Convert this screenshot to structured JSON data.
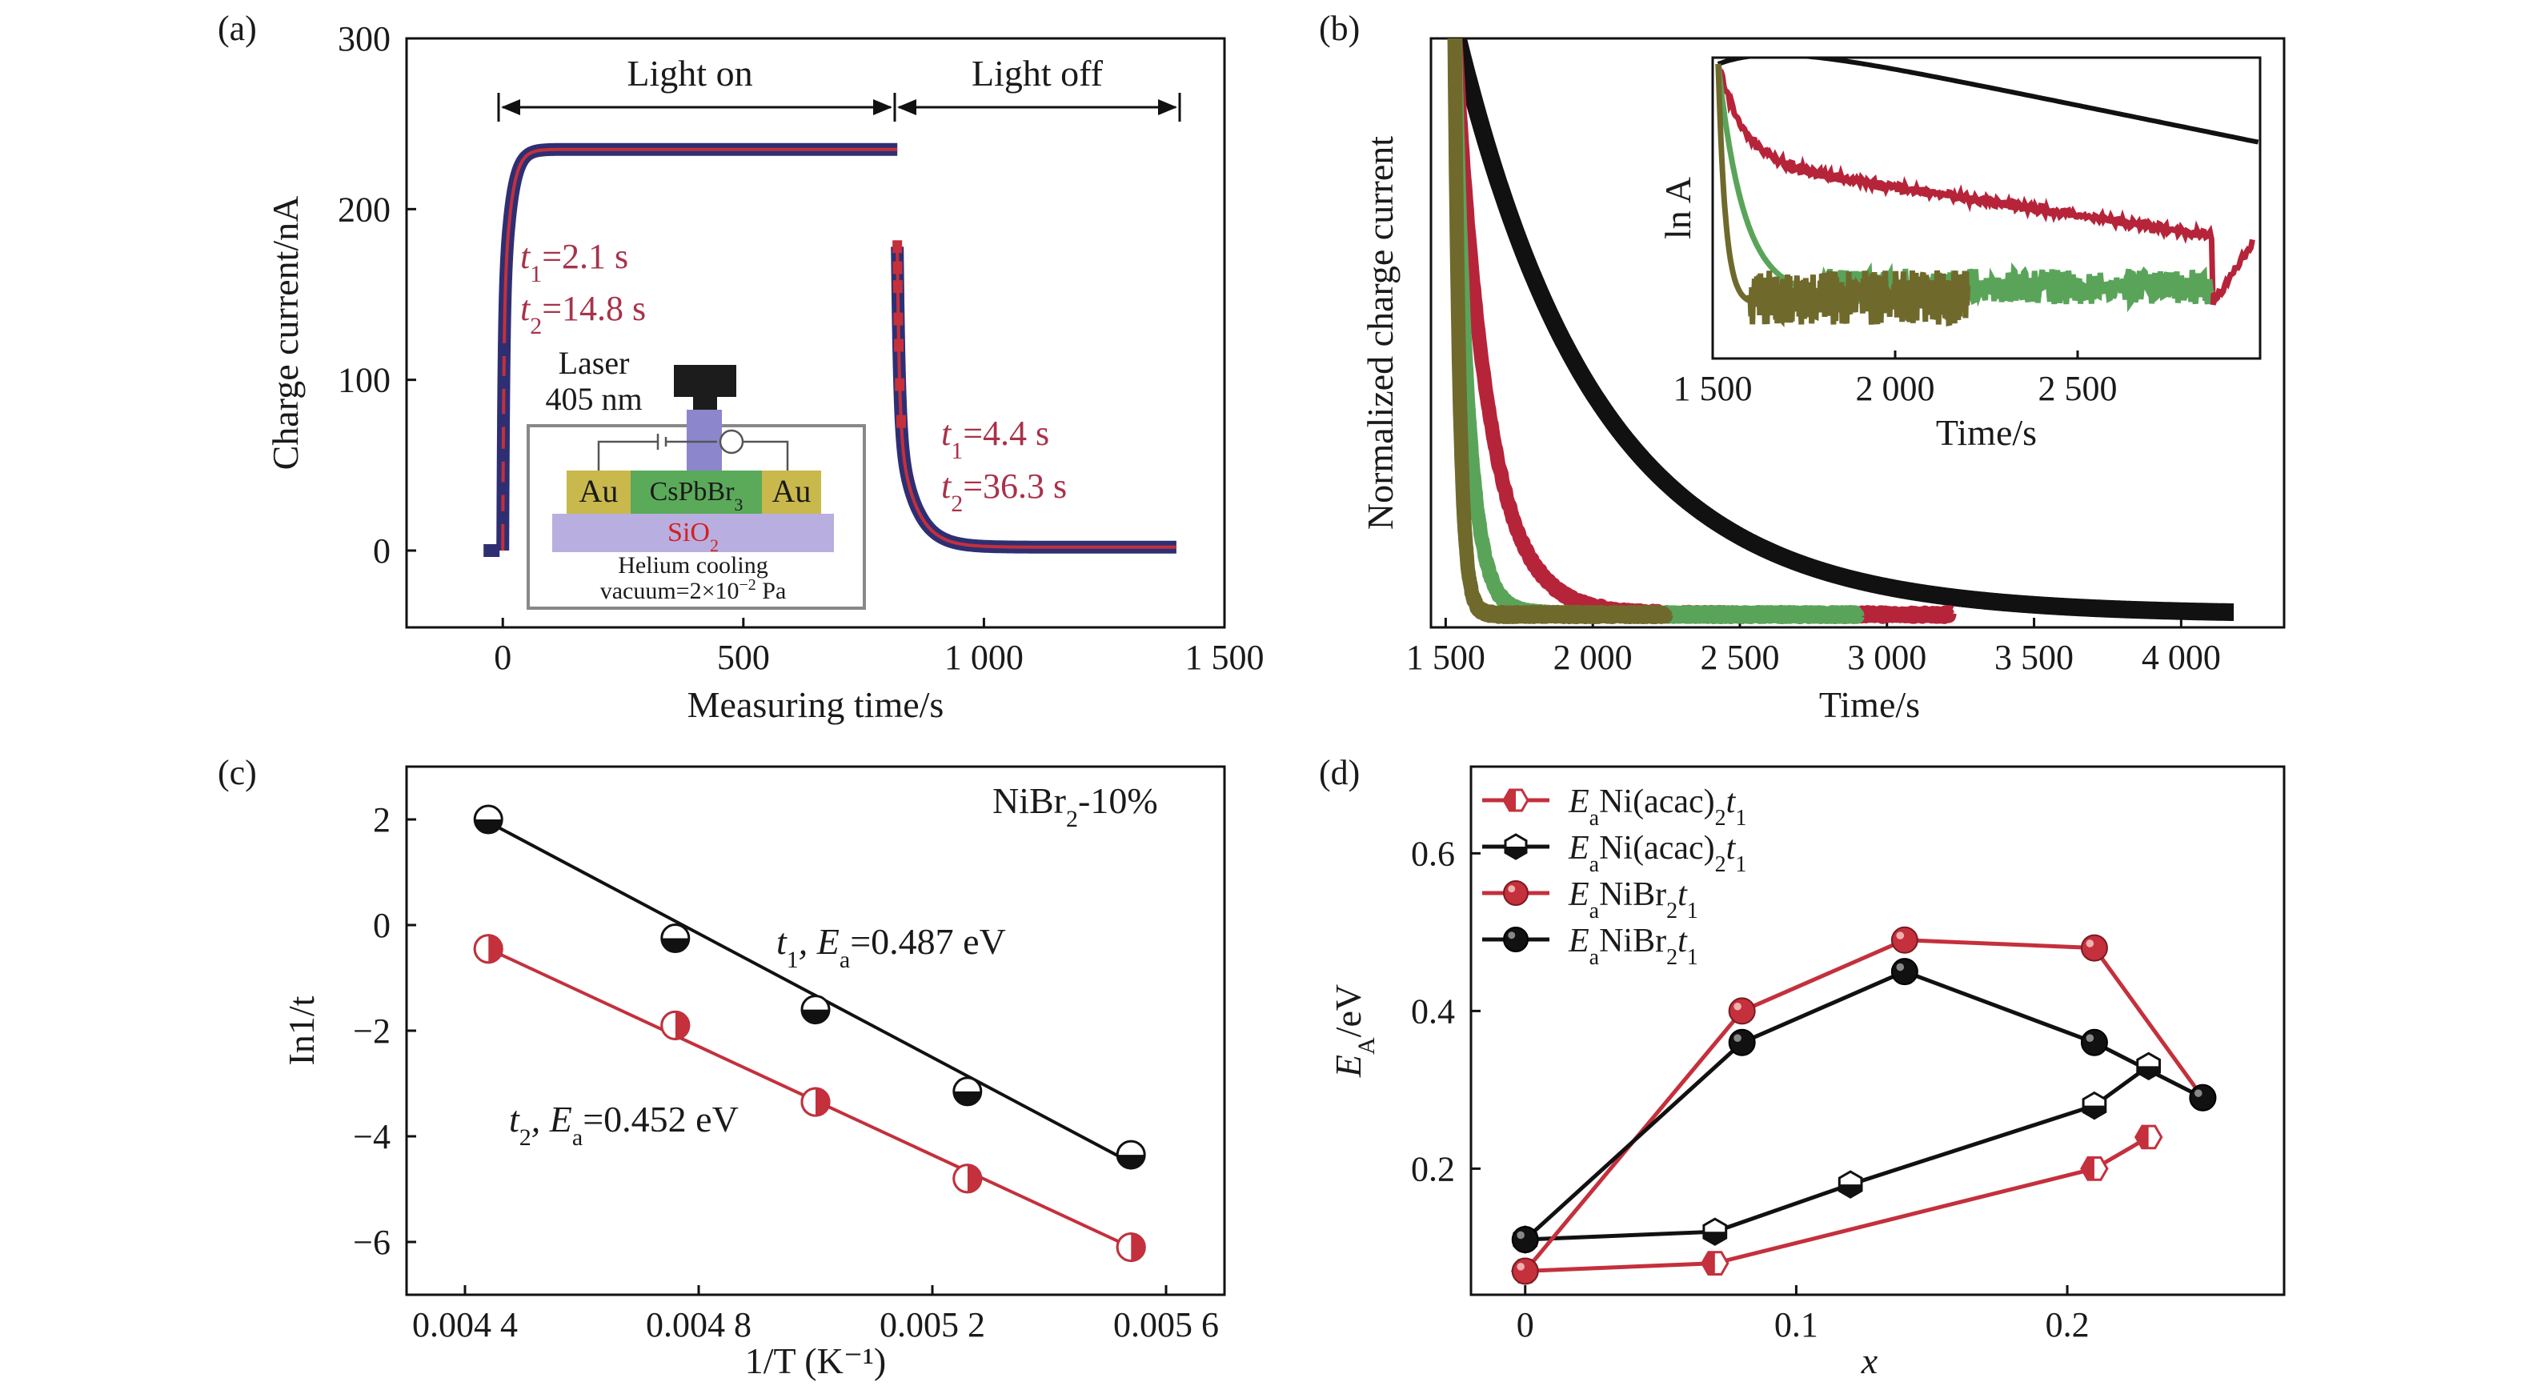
{
  "colors": {
    "red": "#c4303c",
    "black": "#111111",
    "navy": "#2e2f73",
    "green": "#5aa45a",
    "olive": "#6f6a2c",
    "crimson": "#b6243a",
    "annotation": "#a8324a",
    "au": "#c9b84c",
    "au_text": "#d42020",
    "perov": "#5aaa5a",
    "sio2": "#b9aee0"
  },
  "chart_data": [
    {
      "panel": "(a)",
      "type": "line",
      "xlabel": "Measuring time/s",
      "ylabel": "Charge current/nA",
      "xlim": [
        -200,
        1500
      ],
      "ylim": [
        -45,
        300
      ],
      "xticks": [
        {
          "v": 0,
          "label": "0"
        },
        {
          "v": 500,
          "label": "500"
        },
        {
          "v": 1000,
          "label": "1 000"
        },
        {
          "v": 1500,
          "label": "1 500"
        }
      ],
      "yticks": [
        {
          "v": 0,
          "label": "0"
        },
        {
          "v": 100,
          "label": "100"
        },
        {
          "v": 200,
          "label": "200"
        },
        {
          "v": 300,
          "label": "300"
        }
      ],
      "light_on_label": "Light on",
      "light_off_label": "Light off",
      "light_on_range": [
        0,
        820
      ],
      "light_off_range": [
        820,
        1400
      ],
      "rise": {
        "t0": 0,
        "plateau": 235,
        "start": 0,
        "end": 820,
        "tau1": 2.1,
        "tau2": 14.8
      },
      "decay": {
        "t0": 820,
        "peak": 178,
        "end": 1400,
        "tau1": 4.4,
        "tau2": 36.3,
        "baseline": 2
      },
      "prelight": {
        "x": [
          -40,
          0
        ],
        "y": 0
      },
      "annotations": {
        "rise_t1": {
          "sym": "t",
          "sub": "1",
          "value": "=2.1 s"
        },
        "rise_t2": {
          "sym": "t",
          "sub": "2",
          "value": "=14.8 s"
        },
        "decay_t1": {
          "sym": "t",
          "sub": "1",
          "value": "=4.4 s"
        },
        "decay_t2": {
          "sym": "t",
          "sub": "2",
          "value": "=36.3 s"
        }
      },
      "inset": {
        "laser_label": "Laser",
        "wavelength": "405 nm",
        "electrode_left": "Au",
        "electrode_right": "Au",
        "perovskite": "CsPbBr",
        "perovskite_sub": "3",
        "substrate": "SiO",
        "substrate_sub": "2",
        "cooling": "Helium cooling",
        "vacuum": "vacuum=2×10",
        "vacuum_exp": "−2",
        "vacuum_unit": " Pa"
      }
    },
    {
      "panel": "(b)",
      "type": "line",
      "xlabel": "Time/s",
      "ylabel": "Normalized charge current",
      "xlim": [
        1450,
        4350
      ],
      "xticks": [
        {
          "v": 1500,
          "label": "1 500"
        },
        {
          "v": 2000,
          "label": "2 000"
        },
        {
          "v": 2500,
          "label": "2 500"
        },
        {
          "v": 3000,
          "label": "3 000"
        },
        {
          "v": 3500,
          "label": "3 500"
        },
        {
          "v": 4000,
          "label": "4 000"
        }
      ],
      "series_shape": [
        {
          "color_key": "black",
          "t0": 1530,
          "end": 4180,
          "tau": 480
        },
        {
          "color_key": "crimson",
          "t0": 1530,
          "end": 3220,
          "tau": 110
        },
        {
          "color_key": "green",
          "t0": 1530,
          "end": 2900,
          "tau": 45
        },
        {
          "color_key": "olive",
          "t0": 1530,
          "end": 2250,
          "tau": 18
        }
      ],
      "inset": {
        "xlabel": "Time/s",
        "ylabel": "ln A",
        "xlim": [
          1500,
          3000
        ],
        "xticks": [
          {
            "v": 1500,
            "label": "1 500"
          },
          {
            "v": 2000,
            "label": "2 000"
          },
          {
            "v": 2500,
            "label": "2 500"
          }
        ]
      }
    },
    {
      "panel": "(c)",
      "type": "scatter",
      "label": "NiBr",
      "label_sub": "2",
      "label_rest": "-10%",
      "xlabel": "1/T (K⁻¹)",
      "ylabel": "In1/t",
      "xlim": [
        0.0043,
        0.0057
      ],
      "ylim": [
        -7.0,
        3.0
      ],
      "xticks": [
        {
          "v": 0.0044,
          "label": "0.004 4"
        },
        {
          "v": 0.0048,
          "label": "0.004 8"
        },
        {
          "v": 0.0052,
          "label": "0.005 2"
        },
        {
          "v": 0.0056,
          "label": "0.005 6"
        }
      ],
      "yticks": [
        {
          "v": 2,
          "label": "2"
        },
        {
          "v": 0,
          "label": "0"
        },
        {
          "v": -2,
          "label": "−2"
        },
        {
          "v": -4,
          "label": "−4"
        },
        {
          "v": -6,
          "label": "−6"
        }
      ],
      "series": [
        {
          "name": "t1",
          "label": {
            "sym": "t",
            "sub": "1",
            "rest": ", E",
            "rest_sub": "a",
            "value": "=0.487 eV"
          },
          "x": [
            0.00444,
            0.00476,
            0.005,
            0.00526,
            0.00554
          ],
          "y": [
            2.0,
            -0.25,
            -1.6,
            -3.15,
            -4.35
          ],
          "fit": [
            [
              0.00444,
              1.95
            ],
            [
              0.00554,
              -4.5
            ]
          ]
        },
        {
          "name": "t2",
          "label": {
            "sym": "t",
            "sub": "2",
            "rest": ", E",
            "rest_sub": "a",
            "value": "=0.452 eV"
          },
          "x": [
            0.00444,
            0.00476,
            0.005,
            0.00526,
            0.00554
          ],
          "y": [
            -0.45,
            -1.9,
            -3.35,
            -4.8,
            -6.1
          ],
          "fit": [
            [
              0.00444,
              -0.45
            ],
            [
              0.00554,
              -6.1
            ]
          ]
        }
      ]
    },
    {
      "panel": "(d)",
      "type": "line",
      "xlabel": "x",
      "ylabel": "E_A/eV",
      "xlim": [
        -0.02,
        0.28
      ],
      "ylim": [
        0.04,
        0.71
      ],
      "xticks": [
        {
          "v": 0,
          "label": "0"
        },
        {
          "v": 0.1,
          "label": "0.1"
        },
        {
          "v": 0.2,
          "label": "0.2"
        }
      ],
      "yticks": [
        {
          "v": 0.2,
          "label": "0.2"
        },
        {
          "v": 0.4,
          "label": "0.4"
        },
        {
          "v": 0.6,
          "label": "0.6"
        }
      ],
      "series": [
        {
          "legend": {
            "E": "E",
            "sub": "a",
            "mid": "Ni(acac)",
            "mid_sub": "2",
            "t": "t",
            "t_sub": "1"
          },
          "marker": "half-red-left",
          "x": [
            0,
            0.07,
            0.21,
            0.23
          ],
          "y": [
            0.07,
            0.08,
            0.2,
            0.24
          ]
        },
        {
          "legend": {
            "E": "E",
            "sub": "a",
            "mid": "Ni(acac)",
            "mid_sub": "2",
            "t": "t",
            "t_sub": "1"
          },
          "marker": "half-black-bottom",
          "x": [
            0,
            0.07,
            0.12,
            0.21,
            0.23
          ],
          "y": [
            0.11,
            0.12,
            0.18,
            0.28,
            0.33
          ]
        },
        {
          "legend": {
            "E": "E",
            "sub": "a",
            "mid": "NiBr",
            "mid_sub": "2",
            "t": "t",
            "t_sub": "1"
          },
          "marker": "full-red",
          "x": [
            0,
            0.08,
            0.14,
            0.21,
            0.25
          ],
          "y": [
            0.07,
            0.4,
            0.49,
            0.48,
            0.29
          ]
        },
        {
          "legend": {
            "E": "E",
            "sub": "a",
            "mid": "NiBr",
            "mid_sub": "2",
            "t": "t",
            "t_sub": "1"
          },
          "marker": "full-black",
          "x": [
            0,
            0.08,
            0.14,
            0.21,
            0.25
          ],
          "y": [
            0.11,
            0.36,
            0.45,
            0.36,
            0.29
          ]
        }
      ]
    }
  ]
}
